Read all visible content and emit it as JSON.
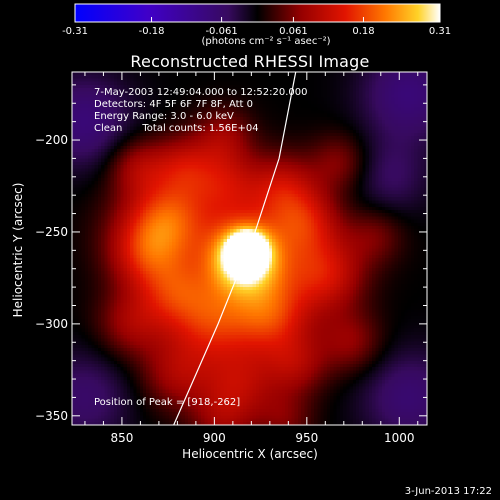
{
  "chart_data": {
    "type": "heatmap",
    "title": "Reconstructed RHESSI Image",
    "xlabel": "Heliocentric X (arcsec)",
    "ylabel": "Heliocentric Y (arcsec)",
    "xlim": [
      823,
      1015
    ],
    "ylim": [
      -355,
      -163
    ],
    "x_ticks": [
      850,
      900,
      950,
      1000
    ],
    "y_ticks": [
      -200,
      -250,
      -300,
      -350
    ],
    "colorbar": {
      "min": -0.31,
      "max": 0.31,
      "ticks": [
        "-0.31",
        "-0.18",
        "-0.061",
        "0.061",
        "0.18",
        "0.31"
      ],
      "label": "(photons cm⁻² s⁻¹ asec⁻²)"
    },
    "annotations": {
      "time_range": "7-May-2003 12:49:04.000 to 12:52:20.000",
      "detectors": "Detectors: 4F 5F 6F 7F 8F, Att 0",
      "energy_range": "Energy Range: 3.0 - 6.0 keV",
      "clean": "Clean",
      "total_counts": "Total counts: 1.56E+04",
      "peak_position": "Position of Peak = [918,-262]"
    },
    "peak": {
      "x": 918,
      "y": -262
    },
    "limb_curve": [
      {
        "x": 878,
        "y": -355
      },
      {
        "x": 902,
        "y": -300
      },
      {
        "x": 922,
        "y": -250
      },
      {
        "x": 935,
        "y": -210
      },
      {
        "x": 944,
        "y": -163
      }
    ],
    "intensity_blobs": [
      {
        "x": 918,
        "y": -260,
        "value": 0.31,
        "sigma": 6
      },
      {
        "x": 916,
        "y": -264,
        "value": 0.22,
        "sigma": 12
      },
      {
        "x": 914,
        "y": -266,
        "value": 0.12,
        "sigma": 26
      },
      {
        "x": 863,
        "y": -262,
        "value": 0.11,
        "sigma": 14
      },
      {
        "x": 875,
        "y": -242,
        "value": 0.1,
        "sigma": 14
      },
      {
        "x": 878,
        "y": -284,
        "value": 0.095,
        "sigma": 13
      },
      {
        "x": 898,
        "y": -300,
        "value": 0.105,
        "sigma": 15
      },
      {
        "x": 930,
        "y": -297,
        "value": 0.1,
        "sigma": 14
      },
      {
        "x": 950,
        "y": -245,
        "value": 0.1,
        "sigma": 13
      },
      {
        "x": 937,
        "y": -226,
        "value": 0.095,
        "sigma": 13
      },
      {
        "x": 962,
        "y": -273,
        "value": 0.1,
        "sigma": 14
      },
      {
        "x": 905,
        "y": -223,
        "value": 0.085,
        "sigma": 13
      },
      {
        "x": 883,
        "y": -214,
        "value": 0.09,
        "sigma": 12
      },
      {
        "x": 905,
        "y": -198,
        "value": 0.07,
        "sigma": 11
      },
      {
        "x": 858,
        "y": -214,
        "value": 0.075,
        "sigma": 11
      },
      {
        "x": 855,
        "y": -300,
        "value": 0.08,
        "sigma": 13
      },
      {
        "x": 880,
        "y": -327,
        "value": 0.085,
        "sigma": 14
      },
      {
        "x": 914,
        "y": -332,
        "value": 0.09,
        "sigma": 14
      },
      {
        "x": 944,
        "y": -322,
        "value": 0.08,
        "sigma": 12
      },
      {
        "x": 974,
        "y": -310,
        "value": 0.07,
        "sigma": 12
      },
      {
        "x": 987,
        "y": -252,
        "value": 0.055,
        "sigma": 11
      },
      {
        "x": 968,
        "y": -212,
        "value": 0.065,
        "sigma": 11
      },
      {
        "x": 938,
        "y": -352,
        "value": 0.055,
        "sigma": 11
      },
      {
        "x": 904,
        "y": -352,
        "value": 0.065,
        "sigma": 12
      },
      {
        "x": 868,
        "y": -245,
        "value": 0.06,
        "sigma": 20
      },
      {
        "x": 932,
        "y": -276,
        "value": 0.05,
        "sigma": 22
      },
      {
        "x": 830,
        "y": -190,
        "value": -0.08,
        "sigma": 18
      },
      {
        "x": 1005,
        "y": -175,
        "value": -0.08,
        "sigma": 18
      },
      {
        "x": 1005,
        "y": -340,
        "value": -0.07,
        "sigma": 18
      },
      {
        "x": 830,
        "y": -340,
        "value": -0.06,
        "sigma": 18
      },
      {
        "x": 995,
        "y": -220,
        "value": -0.05,
        "sigma": 15
      }
    ]
  },
  "footer": {
    "date": "3-Jun-2013 17:22"
  }
}
